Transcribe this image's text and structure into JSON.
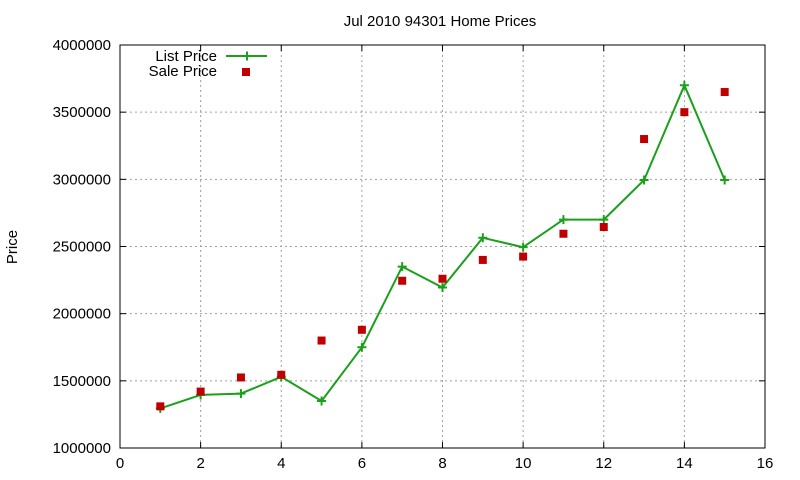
{
  "chart_data": {
    "type": "line",
    "title": "Jul 2010 94301 Home Prices",
    "xlabel": "",
    "ylabel": "Price",
    "xlim": [
      0,
      16
    ],
    "ylim": [
      1000000,
      4000000
    ],
    "x_ticks": [
      "0",
      "2",
      "4",
      "6",
      "8",
      "10",
      "12",
      "14",
      "16"
    ],
    "y_ticks": [
      "1000000",
      "1500000",
      "2000000",
      "2500000",
      "3000000",
      "3500000",
      "4000000"
    ],
    "grid": true,
    "legend_position": "top-left",
    "series": [
      {
        "name": "List Price",
        "style": "line-with-plus-markers",
        "color": "#1aa01a",
        "x": [
          1,
          2,
          3,
          4,
          5,
          6,
          7,
          8,
          9,
          10,
          11,
          12,
          13,
          14,
          15
        ],
        "values": [
          1295000,
          1395000,
          1405000,
          1530000,
          1350000,
          1750000,
          2350000,
          2195000,
          2565000,
          2495000,
          2700000,
          2700000,
          2995000,
          3700000,
          2995000
        ]
      },
      {
        "name": "Sale Price",
        "style": "square-markers",
        "color": "#c00000",
        "x": [
          1,
          2,
          3,
          4,
          5,
          6,
          7,
          8,
          9,
          10,
          11,
          12,
          13,
          14,
          15
        ],
        "values": [
          1310000,
          1420000,
          1525000,
          1545000,
          1800000,
          1880000,
          2245000,
          2260000,
          2400000,
          2425000,
          2595000,
          2645000,
          3300000,
          3500000,
          3650000
        ]
      }
    ]
  }
}
